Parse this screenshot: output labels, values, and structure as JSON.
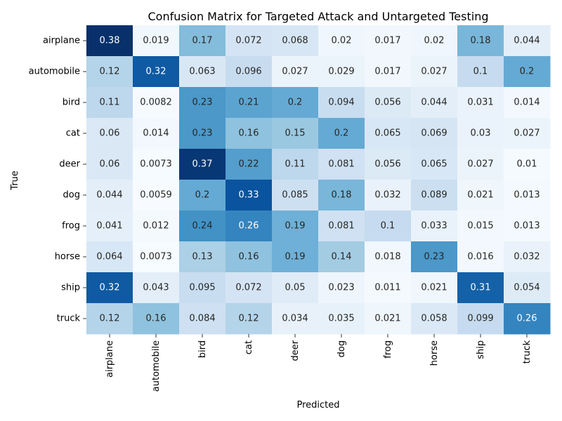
{
  "chart_data": {
    "type": "heatmap",
    "title": "Confusion Matrix for Targeted Attack and Untargeted Testing",
    "xlabel": "Predicted",
    "ylabel": "True",
    "x_categories": [
      "airplane",
      "automobile",
      "bird",
      "cat",
      "deer",
      "dog",
      "frog",
      "horse",
      "ship",
      "truck"
    ],
    "y_categories": [
      "airplane",
      "automobile",
      "bird",
      "cat",
      "deer",
      "dog",
      "frog",
      "horse",
      "ship",
      "truck"
    ],
    "values": [
      [
        "0.38",
        "0.019",
        "0.17",
        "0.072",
        "0.068",
        "0.02",
        "0.017",
        "0.02",
        "0.18",
        "0.044"
      ],
      [
        "0.12",
        "0.32",
        "0.063",
        "0.096",
        "0.027",
        "0.029",
        "0.017",
        "0.027",
        "0.1",
        "0.2"
      ],
      [
        "0.11",
        "0.0082",
        "0.23",
        "0.21",
        "0.2",
        "0.094",
        "0.056",
        "0.044",
        "0.031",
        "0.014"
      ],
      [
        "0.06",
        "0.014",
        "0.23",
        "0.16",
        "0.15",
        "0.2",
        "0.065",
        "0.069",
        "0.03",
        "0.027"
      ],
      [
        "0.06",
        "0.0073",
        "0.37",
        "0.22",
        "0.11",
        "0.081",
        "0.056",
        "0.065",
        "0.027",
        "0.01"
      ],
      [
        "0.044",
        "0.0059",
        "0.2",
        "0.33",
        "0.085",
        "0.18",
        "0.032",
        "0.089",
        "0.021",
        "0.013"
      ],
      [
        "0.041",
        "0.012",
        "0.24",
        "0.26",
        "0.19",
        "0.081",
        "0.1",
        "0.033",
        "0.015",
        "0.013"
      ],
      [
        "0.064",
        "0.0073",
        "0.13",
        "0.16",
        "0.19",
        "0.14",
        "0.018",
        "0.23",
        "0.016",
        "0.032"
      ],
      [
        "0.32",
        "0.043",
        "0.095",
        "0.072",
        "0.05",
        "0.023",
        "0.011",
        "0.021",
        "0.31",
        "0.054"
      ],
      [
        "0.12",
        "0.16",
        "0.084",
        "0.12",
        "0.034",
        "0.035",
        "0.021",
        "0.058",
        "0.099",
        "0.26"
      ]
    ],
    "colormap": "Blues",
    "colorbar": false,
    "annotated": true,
    "grid": false
  }
}
